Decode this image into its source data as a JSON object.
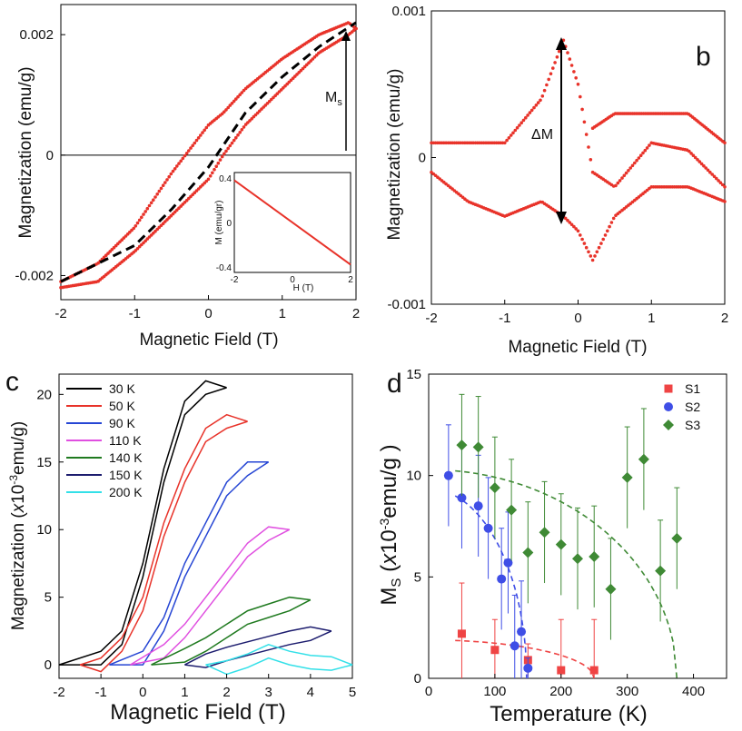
{
  "colors": {
    "red": "#e8332a",
    "black": "#000000",
    "blue": "#3f4ee6",
    "green": "#3f8a35"
  },
  "chart_data": [
    {
      "id": "a",
      "panel_label": "",
      "type": "line",
      "title": "",
      "xlabel": "Magnetic Field (T)",
      "ylabel": "Magnetization (emu/g)",
      "xlim": [
        -2,
        2
      ],
      "ylim": [
        -0.0024,
        0.0025
      ],
      "x_ticks": [
        "-2",
        "-1",
        "0",
        "1",
        "2"
      ],
      "y_ticks": [
        "-0.002",
        "0",
        "0.002"
      ],
      "annotations": {
        "ms": "M",
        "ms_sub": "s"
      },
      "series": [
        {
          "name": "hysteresis loop",
          "style": "red dotted",
          "x": [
            -2,
            -1.5,
            -1,
            -0.5,
            0,
            0.2,
            0.5,
            1,
            1.5,
            1.9,
            2
          ],
          "y_upper": [
            -0.0021,
            -0.0018,
            -0.0012,
            -0.0003,
            0.0005,
            0.0007,
            0.0011,
            0.0016,
            0.002,
            0.0022,
            0.0021
          ],
          "y_lower": [
            -0.0022,
            -0.0021,
            -0.0016,
            -0.001,
            -0.0004,
            0.0,
            0.0005,
            0.0011,
            0.0017,
            0.002,
            0.0021
          ]
        },
        {
          "name": "average",
          "style": "black dashed",
          "x": [
            -2,
            -1,
            -0.5,
            0,
            0.5,
            1,
            1.5,
            2
          ],
          "y": [
            -0.0021,
            -0.0015,
            -0.0009,
            -0.0002,
            0.0007,
            0.0013,
            0.0018,
            0.0022
          ]
        }
      ],
      "inset": {
        "xlabel": "H (T)",
        "ylabel": "M (emu/gr)",
        "x_ticks": [
          "-2",
          "0",
          "2"
        ],
        "y_ticks": [
          "0.4",
          "0",
          "-0.4"
        ],
        "x": [
          -2,
          2
        ],
        "y": [
          0.38,
          -0.38
        ]
      }
    },
    {
      "id": "b",
      "panel_label": "b",
      "type": "line",
      "title": "",
      "xlabel": "Magnetic Field (T)",
      "ylabel": "Magnetization (emu/g)",
      "xlim": [
        -2,
        2
      ],
      "ylim": [
        -0.001,
        0.001
      ],
      "x_ticks": [
        "-2",
        "-1",
        "0",
        "1",
        "2"
      ],
      "y_ticks": [
        "0.001",
        "0",
        "-0.001"
      ],
      "annotations": {
        "delta_m": "ΔM"
      },
      "series": [
        {
          "name": "upper branch",
          "style": "red dotted",
          "x": [
            -2,
            -1.5,
            -1,
            -0.5,
            -0.2,
            0,
            0.2,
            0.5,
            1,
            1.5,
            2
          ],
          "y": [
            0.0001,
            0.0001,
            0.0001,
            0.0004,
            0.0008,
            0.0005,
            -0.0001,
            -0.0002,
            0.0001,
            5e-05,
            -0.0002
          ]
        },
        {
          "name": "lower branch",
          "style": "red dotted",
          "x": [
            -2,
            -1.5,
            -1,
            -0.5,
            -0.2,
            0,
            0.2,
            0.5,
            1,
            1.5,
            2
          ],
          "y": [
            -0.0001,
            -0.0003,
            -0.0004,
            -0.0003,
            -0.0004,
            -0.0005,
            -0.0007,
            -0.0004,
            -0.0002,
            -0.0002,
            -0.0003
          ]
        },
        {
          "name": "plateau branch",
          "style": "red dotted",
          "x": [
            0.2,
            0.5,
            1,
            1.5,
            2
          ],
          "y": [
            0.0002,
            0.0003,
            0.0003,
            0.0003,
            0.0001
          ]
        }
      ]
    },
    {
      "id": "c",
      "panel_label": "c",
      "type": "line",
      "title": "",
      "xlabel": "Magnetic Field (T)",
      "ylabel": "Magnetization (x10-3emu/g)",
      "ylabel_prefix": "Magnetization (",
      "ylabel_x": "x",
      "ylabel_mid": "10",
      "ylabel_sup": "-3",
      "ylabel_rest": "emu/g)",
      "xlim": [
        -2,
        5
      ],
      "ylim": [
        -1,
        21.5
      ],
      "x_ticks": [
        "-2",
        "-1",
        "0",
        "1",
        "2",
        "3",
        "4",
        "5"
      ],
      "y_ticks": [
        "0",
        "5",
        "10",
        "15",
        "20"
      ],
      "legend": [
        {
          "label": "30 K",
          "color": "#000000"
        },
        {
          "label": "50 K",
          "color": "#e8332a"
        },
        {
          "label": "90 K",
          "color": "#2646d4"
        },
        {
          "label": "110 K",
          "color": "#e04fe0"
        },
        {
          "label": "140 K",
          "color": "#1f7a1f"
        },
        {
          "label": "150 K",
          "color": "#1c1c6e"
        },
        {
          "label": "200 K",
          "color": "#33e0e8"
        }
      ],
      "series": [
        {
          "name": "30 K",
          "x": [
            -2,
            -1,
            -0.5,
            0,
            0.5,
            1,
            1.5,
            2
          ],
          "y": [
            0,
            0.5,
            2,
            7,
            14,
            19,
            20.5,
            20.5
          ]
        },
        {
          "name": "50 K",
          "x": [
            -1.5,
            -1,
            -0.5,
            0,
            0.5,
            1,
            1.5,
            2,
            2.5
          ],
          "y": [
            0,
            0,
            1.5,
            4.5,
            10,
            14,
            17,
            18,
            18
          ]
        },
        {
          "name": "90 K",
          "x": [
            -0.8,
            0,
            0.5,
            1,
            1.5,
            2,
            2.5,
            3
          ],
          "y": [
            0,
            0.5,
            3,
            7,
            10,
            13,
            14.5,
            15
          ]
        },
        {
          "name": "110 K",
          "x": [
            -0.3,
            0.5,
            1,
            1.5,
            2,
            2.5,
            3,
            3.5
          ],
          "y": [
            0,
            1,
            2.5,
            4.5,
            6.5,
            8.5,
            9.7,
            10
          ]
        },
        {
          "name": "140 K",
          "x": [
            0.2,
            1,
            1.5,
            2,
            2.5,
            3,
            3.5,
            4
          ],
          "y": [
            0,
            0.7,
            1.5,
            2.5,
            3.5,
            4,
            4.5,
            4.8
          ]
        },
        {
          "name": "150 K",
          "x": [
            1,
            1.5,
            2,
            2.5,
            3,
            3.5,
            4,
            4.5
          ],
          "y": [
            0,
            0.3,
            0.8,
            1.2,
            1.6,
            2,
            2.3,
            2.5
          ]
        },
        {
          "name": "200 K",
          "x": [
            1.5,
            2,
            2.5,
            3,
            3.5,
            4,
            4.5,
            5
          ],
          "y": [
            0,
            -0.2,
            0.3,
            1,
            0.5,
            0.2,
            0.1,
            0
          ]
        }
      ]
    },
    {
      "id": "d",
      "panel_label": "d",
      "type": "scatter",
      "title": "",
      "xlabel": "Temperature (K)",
      "ylabel": "MS (x10-3emu/g )",
      "ylabel_main": "M",
      "ylabel_sub": "S",
      "ylabel_open": " (",
      "ylabel_x": "x",
      "ylabel_mid": "10",
      "ylabel_sup": "-3",
      "ylabel_rest": "emu/g )",
      "xlim": [
        0,
        450
      ],
      "ylim": [
        0,
        15
      ],
      "x_ticks": [
        "0",
        "100",
        "200",
        "300",
        "400"
      ],
      "y_ticks": [
        "0",
        "5",
        "10",
        "15"
      ],
      "legend": [
        {
          "label": "S1",
          "color": "#ef4444",
          "marker": "square"
        },
        {
          "label": "S2",
          "color": "#3f4ee6",
          "marker": "circle"
        },
        {
          "label": "S3",
          "color": "#3f8a35",
          "marker": "diamond"
        }
      ],
      "series": [
        {
          "name": "S1",
          "x": [
            50,
            100,
            150,
            200,
            250
          ],
          "y": [
            2.2,
            1.4,
            0.9,
            0.4,
            0.4
          ],
          "err": [
            2.5,
            1.5,
            0.8,
            2.5,
            2.5
          ]
        },
        {
          "name": "S2",
          "x": [
            30,
            50,
            75,
            90,
            110,
            120,
            130,
            140,
            150
          ],
          "y": [
            10,
            8.9,
            8.5,
            7.4,
            4.9,
            5.7,
            1.6,
            2.3,
            0.5
          ],
          "err": [
            2.5,
            2.5,
            2.5,
            2.5,
            2.5,
            2.5,
            2.5,
            2.5,
            0.5
          ]
        },
        {
          "name": "S3",
          "x": [
            50,
            75,
            100,
            125,
            150,
            175,
            200,
            225,
            250,
            275,
            300,
            325,
            350,
            375
          ],
          "y": [
            11.5,
            11.4,
            9.4,
            8.3,
            6.2,
            7.2,
            6.6,
            5.9,
            6.0,
            4.4,
            9.9,
            10.8,
            5.3,
            6.9
          ],
          "err": [
            2.5,
            2.5,
            2.5,
            2.5,
            2.5,
            2.5,
            2.5,
            2.5,
            2.5,
            2.5,
            2.5,
            2.5,
            2.5,
            2.5
          ]
        }
      ],
      "fits": [
        {
          "name": "S1 fit",
          "color": "#ef4444",
          "Tc": 250,
          "M0": 1.8
        },
        {
          "name": "S2 fit",
          "color": "#3f4ee6",
          "Tc": 148,
          "M0": 8.9
        },
        {
          "name": "S3 fit",
          "color": "#3f8a35",
          "Tc": 375,
          "M0": 9.8
        }
      ]
    }
  ]
}
